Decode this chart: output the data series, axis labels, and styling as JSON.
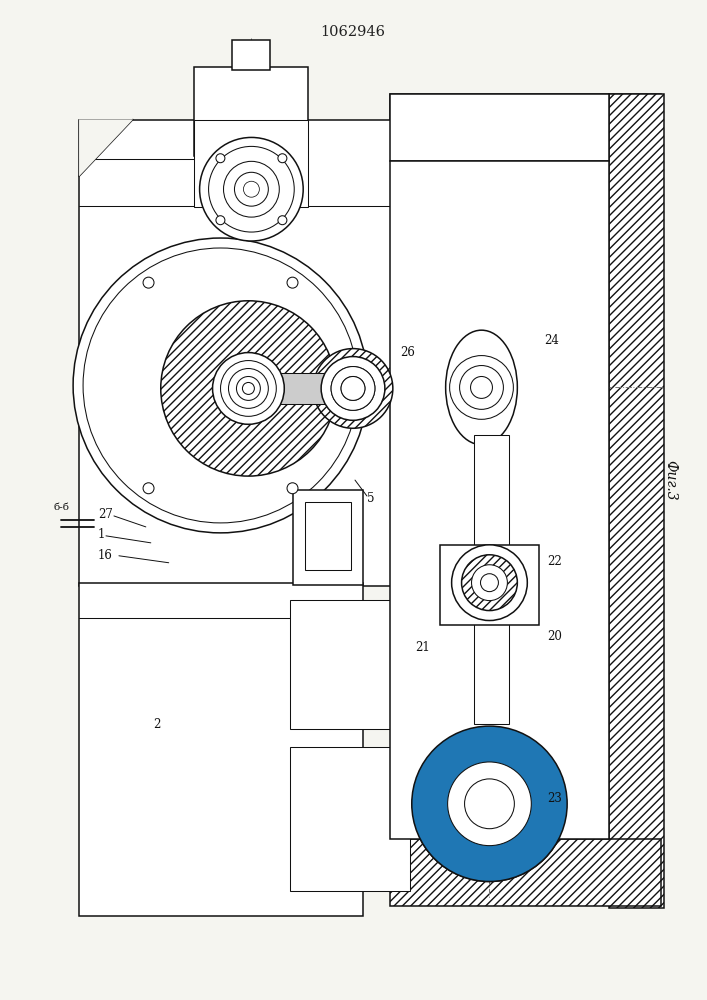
{
  "title": "1062946",
  "fig_label": "Фиг.3",
  "bg_color": "#f5f5f0",
  "line_color": "#111111"
}
